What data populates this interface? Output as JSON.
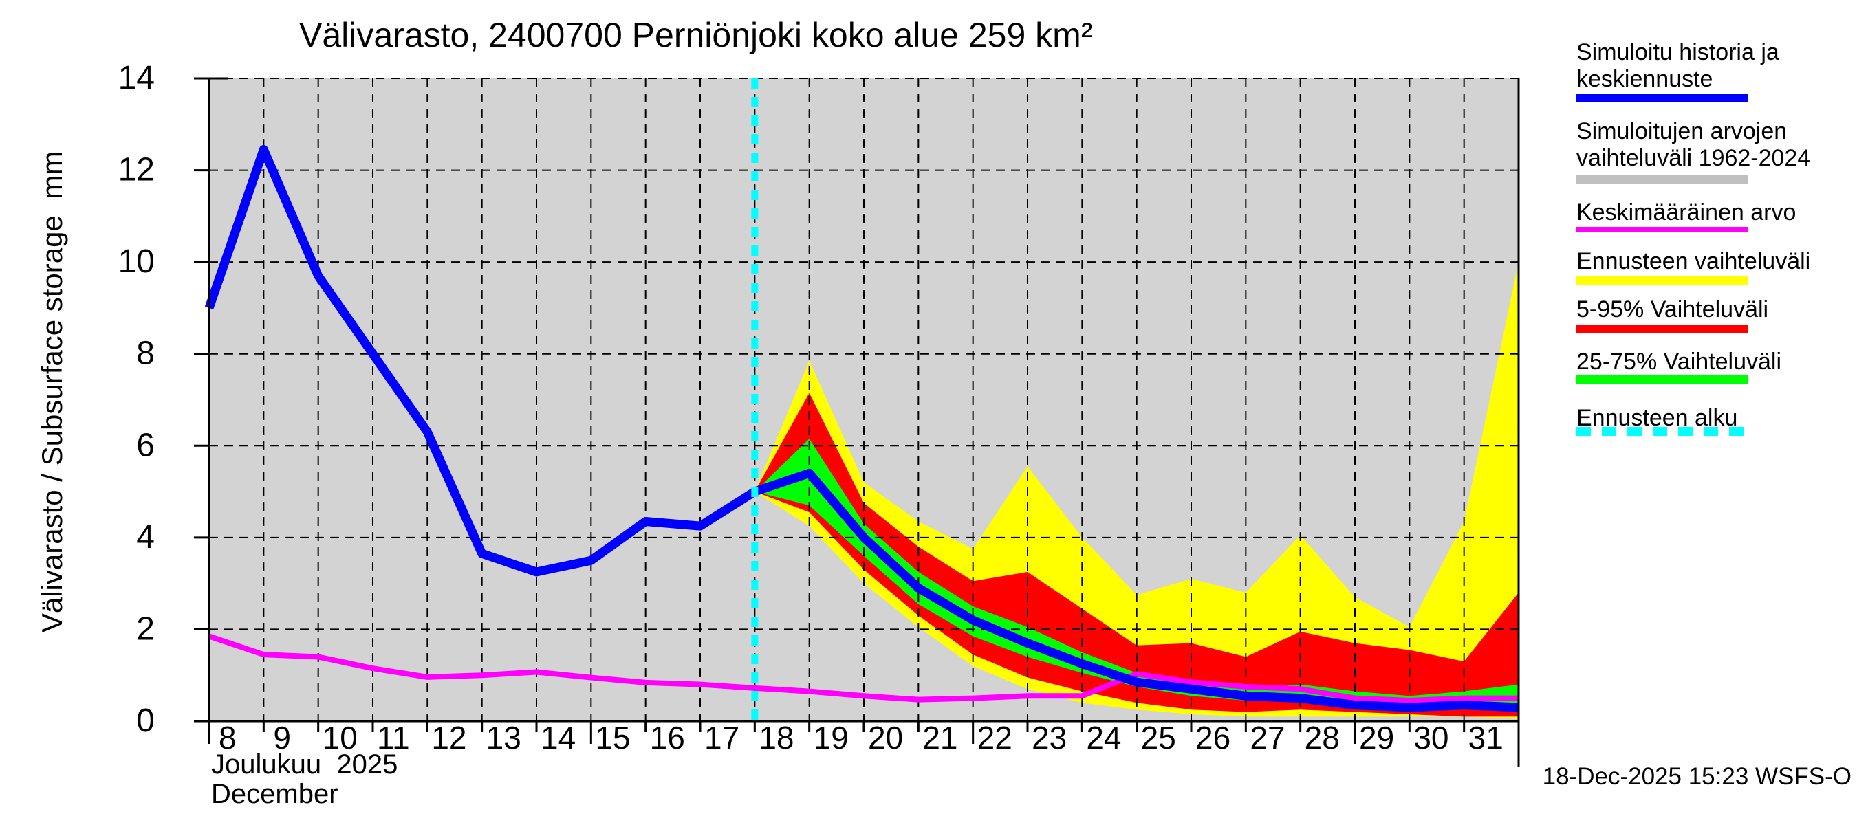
{
  "title": "Välivarasto, 2400700 Perniönjoki koko alue 259 km²",
  "y_axis": {
    "label": "Välivarasto / Subsurface storage  mm",
    "ticks": [
      0,
      2,
      4,
      6,
      8,
      10,
      12,
      14
    ],
    "min": 0,
    "max": 14
  },
  "x_axis": {
    "month_fi": "Joulukuu  2025",
    "month_en": "December",
    "day_ticks": [
      8,
      9,
      10,
      11,
      12,
      13,
      14,
      15,
      16,
      17,
      18,
      19,
      20,
      21,
      22,
      23,
      24,
      25,
      26,
      27,
      28,
      29,
      30,
      31
    ],
    "long_tick_days": [
      8,
      15,
      22,
      29
    ]
  },
  "footer": {
    "timestamp": "18-Dec-2025 15:23 WSFS-O"
  },
  "legend": {
    "items": [
      {
        "label": "Simuloitu historia ja\nkeskiennuste",
        "color": "#0000ff",
        "style": "solid"
      },
      {
        "label": "Simuloitujen arvojen\nvaihteluväli 1962-2024",
        "color": "#c0c0c0",
        "style": "solid"
      },
      {
        "label": "Keskimääräinen arvo",
        "color": "#ff00ff",
        "style": "line"
      },
      {
        "label": "Ennusteen vaihteluväli",
        "color": "#ffff00",
        "style": "solid"
      },
      {
        "label": "5-95% Vaihteluväli",
        "color": "#ff0000",
        "style": "solid"
      },
      {
        "label": "25-75% Vaihteluväli",
        "color": "#00ff00",
        "style": "solid"
      },
      {
        "label": "Ennusteen alku",
        "color": "#00ffff",
        "style": "dashed"
      }
    ]
  },
  "chart_data": {
    "type": "area",
    "title": "Välivarasto, 2400700 Perniönjoki koko alue 259 km²",
    "xlabel": "Joulukuu 2025 / December",
    "ylabel": "Välivarasto / Subsurface storage mm",
    "x_unit": "day_of_december_2025",
    "xlim": [
      8,
      32
    ],
    "ylim": [
      0,
      14
    ],
    "grid": true,
    "background_color": "#d3d3d3",
    "forecast_start_day": 18,
    "forecast_start_color": "#00ffff",
    "bands": [
      {
        "name": "forecast-range-yellow",
        "color": "#ffff00",
        "x": [
          18,
          19,
          20,
          21,
          22,
          23,
          24,
          25,
          26,
          27,
          28,
          29,
          30,
          31,
          32
        ],
        "ymax": [
          5.0,
          7.85,
          5.2,
          4.35,
          3.75,
          5.55,
          4.0,
          2.75,
          3.1,
          2.8,
          4.05,
          2.7,
          2.05,
          4.35,
          10.0
        ],
        "ymin": [
          5.0,
          4.25,
          3.0,
          2.05,
          1.2,
          0.7,
          0.4,
          0.25,
          0.15,
          0.1,
          0.1,
          0.1,
          0.1,
          0.1,
          0.05
        ]
      },
      {
        "name": "range-5-95-red",
        "color": "#ff0000",
        "x": [
          18,
          19,
          20,
          21,
          22,
          23,
          24,
          25,
          26,
          27,
          28,
          29,
          30,
          31,
          32
        ],
        "ymax": [
          5.0,
          7.15,
          4.75,
          3.8,
          3.05,
          3.25,
          2.45,
          1.65,
          1.7,
          1.4,
          1.95,
          1.7,
          1.55,
          1.3,
          2.8
        ],
        "ymin": [
          5.0,
          4.55,
          3.3,
          2.3,
          1.45,
          0.95,
          0.65,
          0.4,
          0.25,
          0.2,
          0.25,
          0.2,
          0.15,
          0.1,
          0.1
        ]
      },
      {
        "name": "range-25-75-green",
        "color": "#00ff00",
        "x": [
          18,
          19,
          20,
          21,
          22,
          23,
          24,
          25,
          26,
          27,
          28,
          29,
          30,
          31,
          32
        ],
        "ymax": [
          5.0,
          6.15,
          4.3,
          3.25,
          2.5,
          2.05,
          1.5,
          1.05,
          0.9,
          0.7,
          0.8,
          0.65,
          0.55,
          0.65,
          0.8
        ],
        "ymin": [
          5.0,
          4.7,
          3.6,
          2.55,
          1.85,
          1.4,
          1.05,
          0.75,
          0.55,
          0.45,
          0.45,
          0.3,
          0.25,
          0.3,
          0.2
        ]
      }
    ],
    "lines": [
      {
        "name": "mean-value",
        "color": "#ff00ff",
        "width": 8,
        "x": [
          8,
          9,
          10,
          11,
          12,
          13,
          14,
          15,
          16,
          17,
          18,
          19,
          20,
          21,
          22,
          23,
          24,
          25,
          26,
          27,
          28,
          29,
          30,
          31,
          32
        ],
        "y": [
          1.85,
          1.45,
          1.4,
          1.15,
          0.96,
          1.0,
          1.07,
          0.95,
          0.84,
          0.8,
          0.72,
          0.65,
          0.55,
          0.47,
          0.5,
          0.55,
          0.55,
          1.03,
          0.85,
          0.75,
          0.7,
          0.5,
          0.45,
          0.5,
          0.5
        ]
      },
      {
        "name": "simulated-history",
        "color": "#0000ff",
        "width": 13,
        "x": [
          8,
          9,
          10,
          11,
          12,
          13,
          14,
          15,
          16,
          17,
          18
        ],
        "y": [
          9.0,
          12.45,
          9.7,
          8.0,
          6.3,
          3.65,
          3.25,
          3.5,
          4.35,
          4.25,
          5.0
        ]
      },
      {
        "name": "forecast-median",
        "color": "#0000ff",
        "width": 13,
        "x": [
          18,
          19,
          20,
          21,
          22,
          23,
          24,
          25,
          26,
          27,
          28,
          29,
          30,
          31,
          32
        ],
        "y": [
          5.0,
          5.4,
          4.0,
          2.9,
          2.2,
          1.7,
          1.25,
          0.85,
          0.7,
          0.55,
          0.5,
          0.35,
          0.3,
          0.35,
          0.3
        ]
      }
    ]
  }
}
